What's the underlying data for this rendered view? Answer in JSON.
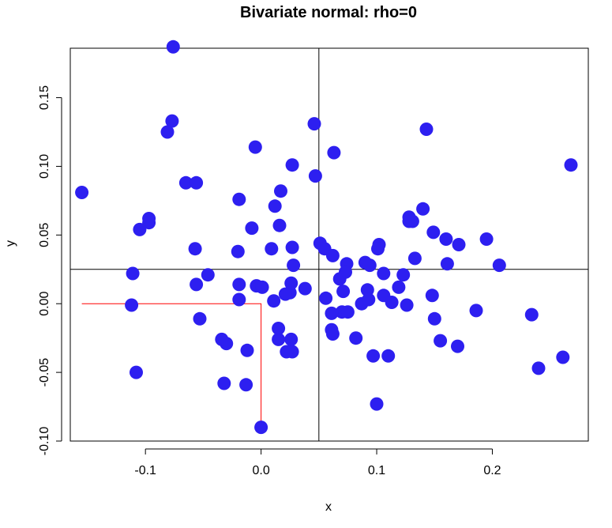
{
  "chart_data": {
    "type": "scatter",
    "title": "Bivariate normal: rho=0",
    "xlabel": "x",
    "ylabel": "y",
    "xlim": [
      -0.165,
      0.283
    ],
    "ylim": [
      -0.1,
      0.186
    ],
    "x_ticks": [
      -0.1,
      0.0,
      0.1,
      0.2
    ],
    "x_tick_labels": [
      "-0.1",
      "0.0",
      "0.1",
      "0.2"
    ],
    "y_ticks": [
      -0.1,
      -0.05,
      0.0,
      0.05,
      0.1,
      0.15
    ],
    "y_tick_labels": [
      "-0.10",
      "-0.05",
      "0.00",
      "0.05",
      "0.10",
      "0.15"
    ],
    "grid": false,
    "point_color": "#2d1ff0",
    "vline_x": 0.05,
    "hline_y": 0.025,
    "guide_color": "#ff0000",
    "guide_path": [
      [
        -0.155,
        0.0
      ],
      [
        0.0,
        0.0
      ],
      [
        0.0,
        -0.09
      ]
    ],
    "series": [
      {
        "x": [
          -0.076,
          -0.077,
          -0.081,
          -0.155,
          -0.065,
          -0.056,
          -0.097,
          -0.097,
          -0.105,
          -0.057,
          -0.111,
          -0.112,
          -0.056,
          -0.046,
          -0.053,
          -0.108,
          -0.005,
          -0.019,
          -0.008,
          -0.02,
          -0.03,
          -0.032,
          -0.012,
          -0.019,
          -0.013,
          -0.034,
          -0.019,
          -0.004,
          0.001,
          0.009,
          0.011,
          0.012,
          0.017,
          0.027,
          0.027,
          0.028,
          0.025,
          0.026,
          0.038,
          0.016,
          0.021,
          0.026,
          0.015,
          0.015,
          0.027,
          0.022,
          0.046,
          0.047,
          0.063,
          0.051,
          0.055,
          0.062,
          0.068,
          0.074,
          0.071,
          0.073,
          0.07,
          0.056,
          0.061,
          0.075,
          0.061,
          0.062,
          0.082,
          0.087,
          0.09,
          0.094,
          0.092,
          0.093,
          0.102,
          0.101,
          0.106,
          0.106,
          0.113,
          0.119,
          0.123,
          0.126,
          0.128,
          0.128,
          0.131,
          0.133,
          0.14,
          0.143,
          0.149,
          0.148,
          0.15,
          0.155,
          0.16,
          0.161,
          0.171,
          0.17,
          0.186,
          0.195,
          0.206,
          0.234,
          0.24,
          0.261,
          0.268,
          0.097,
          0.1,
          0.11,
          0.0
        ],
        "y": [
          0.187,
          0.133,
          0.125,
          0.081,
          0.088,
          0.088,
          0.062,
          0.059,
          0.054,
          0.04,
          0.022,
          -0.001,
          0.014,
          0.021,
          -0.011,
          -0.05,
          0.114,
          0.076,
          0.055,
          0.038,
          -0.029,
          -0.058,
          -0.034,
          0.003,
          -0.059,
          -0.026,
          0.014,
          0.013,
          0.012,
          0.04,
          0.002,
          0.071,
          0.082,
          0.101,
          0.041,
          0.028,
          0.008,
          0.015,
          0.011,
          0.057,
          0.007,
          -0.026,
          -0.026,
          -0.018,
          -0.035,
          -0.035,
          0.131,
          0.093,
          0.11,
          0.044,
          0.04,
          0.035,
          0.018,
          0.029,
          0.009,
          0.023,
          -0.006,
          0.004,
          -0.007,
          -0.006,
          -0.019,
          -0.022,
          -0.025,
          0.0,
          0.03,
          0.028,
          0.01,
          0.003,
          0.043,
          0.04,
          0.022,
          0.006,
          0.001,
          0.012,
          0.021,
          -0.001,
          0.063,
          0.06,
          0.06,
          0.033,
          0.069,
          0.127,
          0.052,
          0.006,
          -0.011,
          -0.027,
          0.047,
          0.029,
          0.043,
          -0.031,
          -0.005,
          0.047,
          0.028,
          -0.008,
          -0.047,
          -0.039,
          0.101,
          -0.038,
          -0.073,
          -0.038,
          -0.09
        ]
      }
    ]
  }
}
